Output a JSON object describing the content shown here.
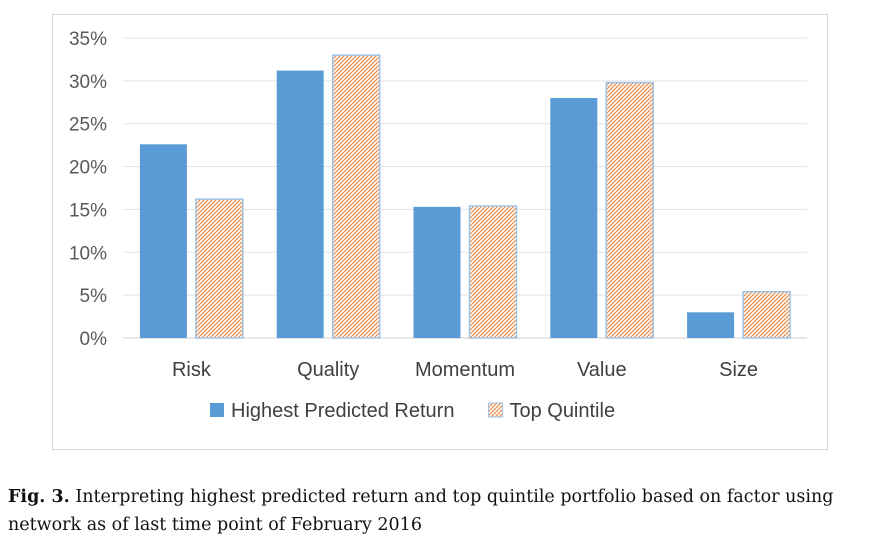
{
  "chart_data": {
    "type": "bar",
    "categories": [
      "Risk",
      "Quality",
      "Momentum",
      "Value",
      "Size"
    ],
    "series": [
      {
        "name": "Highest Predicted Return",
        "values": [
          22.6,
          31.2,
          15.3,
          28.0,
          3.0
        ],
        "color": "#5b9bd5",
        "pattern": "solid"
      },
      {
        "name": "Top Quintile",
        "values": [
          16.2,
          33.0,
          15.4,
          29.8,
          5.4
        ],
        "color": "#ed7d31",
        "pattern": "hatched"
      }
    ],
    "ylim": [
      0,
      35
    ],
    "yticks": [
      "0%",
      "5%",
      "10%",
      "15%",
      "20%",
      "25%",
      "30%",
      "35%"
    ],
    "ytick_values": [
      0,
      5,
      10,
      15,
      20,
      25,
      30,
      35
    ],
    "grid": true,
    "legend_position": "bottom"
  },
  "caption": {
    "label": "Fig. 3.",
    "text": "Interpreting highest predicted return and top quintile portfolio based on factor using network as of last time point of February 2016"
  }
}
